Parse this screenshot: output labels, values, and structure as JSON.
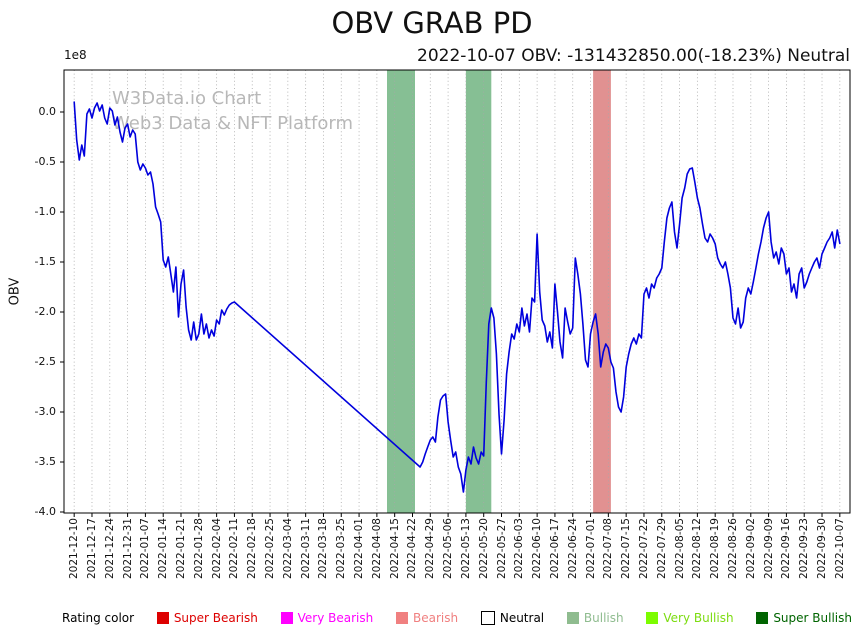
{
  "watermark": {
    "line1": "W3Data.io Chart",
    "line2": "Web3 Data & NFT Platform"
  },
  "legend": {
    "title": "Rating color",
    "items": [
      {
        "label": "Super Bearish",
        "color": "#dd0000",
        "text_color": "#dd0000"
      },
      {
        "label": "Very Bearish",
        "color": "#ff00ff",
        "text_color": "#ff00ff"
      },
      {
        "label": "Bearish",
        "color": "#f08080",
        "text_color": "#f08080"
      },
      {
        "label": "Neutral",
        "color": "#ffffff",
        "text_color": "#000000",
        "edge": "#000000"
      },
      {
        "label": "Bullish",
        "color": "#8fbc8f",
        "text_color": "#8fbc8f"
      },
      {
        "label": "Very Bullish",
        "color": "#7cfc00",
        "text_color": "#7cdc10"
      },
      {
        "label": "Super Bullish",
        "color": "#006400",
        "text_color": "#006400"
      }
    ]
  },
  "chart_data": {
    "type": "line",
    "title": "OBV GRAB PD",
    "subtitle": "2022-10-07 OBV: -131432850.00(-18.23%) Neutral",
    "ylabel": "OBV",
    "y_offset_label": "1e8",
    "y_unit_multiplier": 100000000,
    "latest": {
      "date": "2022-10-07",
      "obv": -131432850.0,
      "change_pct": -18.23,
      "rating": "Neutral"
    },
    "ylim": [
      -4.01,
      0.42
    ],
    "ytick_labels": [
      "0.0",
      "-0.5",
      "-1.0",
      "-1.5",
      "-2.0",
      "-2.5",
      "-3.0",
      "-3.5",
      "-4.0"
    ],
    "x_start_date": "2021-12-10",
    "x_tick_interval_days": 7,
    "x_range_days": [
      -4,
      305
    ],
    "x_tick_labels": [
      "2021-12-10",
      "2021-12-17",
      "2021-12-24",
      "2021-12-31",
      "2022-01-07",
      "2022-01-14",
      "2022-01-21",
      "2022-01-28",
      "2022-02-04",
      "2022-02-11",
      "2022-02-18",
      "2022-02-25",
      "2022-03-04",
      "2022-03-11",
      "2022-03-18",
      "2022-03-25",
      "2022-04-01",
      "2022-04-08",
      "2022-04-15",
      "2022-04-22",
      "2022-04-29",
      "2022-05-06",
      "2022-05-13",
      "2022-05-20",
      "2022-05-27",
      "2022-06-03",
      "2022-06-10",
      "2022-06-17",
      "2022-06-24",
      "2022-07-01",
      "2022-07-08",
      "2022-07-15",
      "2022-07-22",
      "2022-07-29",
      "2022-08-05",
      "2022-08-12",
      "2022-08-19",
      "2022-08-26",
      "2022-09-02",
      "2022-09-09",
      "2022-09-16",
      "2022-09-23",
      "2022-09-30",
      "2022-10-07"
    ],
    "grid": "vertical-dotted",
    "legend_position": "bottom",
    "line_color": "#0000dd",
    "bands": [
      {
        "start": "2022-04-12",
        "end": "2022-04-23",
        "start_day": 123,
        "end_day": 134,
        "rating": "Bullish",
        "color": "rgba(34,139,60,0.55)"
      },
      {
        "start": "2022-05-13",
        "end": "2022-05-23",
        "start_day": 154,
        "end_day": 164,
        "rating": "Bullish",
        "color": "rgba(34,139,60,0.55)"
      },
      {
        "start": "2022-07-02",
        "end": "2022-07-09",
        "start_day": 204,
        "end_day": 211,
        "rating": "Bearish",
        "color": "rgba(205,72,72,0.6)"
      }
    ],
    "series": [
      {
        "name": "OBV",
        "x_unit": "days since 2021-12-10",
        "y_unit": "1e8",
        "points": [
          [
            0,
            0.1
          ],
          [
            1,
            -0.28
          ],
          [
            2,
            -0.48
          ],
          [
            3,
            -0.33
          ],
          [
            4,
            -0.44
          ],
          [
            5,
            -0.02
          ],
          [
            6,
            0.03
          ],
          [
            7,
            -0.06
          ],
          [
            8,
            0.04
          ],
          [
            9,
            0.09
          ],
          [
            10,
            0.01
          ],
          [
            11,
            0.07
          ],
          [
            12,
            -0.06
          ],
          [
            13,
            -0.12
          ],
          [
            14,
            0.04
          ],
          [
            15,
            0.01
          ],
          [
            16,
            -0.13
          ],
          [
            17,
            -0.05
          ],
          [
            18,
            -0.2
          ],
          [
            19,
            -0.3
          ],
          [
            20,
            -0.16
          ],
          [
            21,
            -0.12
          ],
          [
            22,
            -0.25
          ],
          [
            23,
            -0.18
          ],
          [
            24,
            -0.22
          ],
          [
            25,
            -0.5
          ],
          [
            26,
            -0.58
          ],
          [
            27,
            -0.52
          ],
          [
            28,
            -0.56
          ],
          [
            29,
            -0.63
          ],
          [
            30,
            -0.6
          ],
          [
            31,
            -0.72
          ],
          [
            32,
            -0.95
          ],
          [
            33,
            -1.02
          ],
          [
            34,
            -1.1
          ],
          [
            35,
            -1.48
          ],
          [
            36,
            -1.55
          ],
          [
            37,
            -1.45
          ],
          [
            38,
            -1.62
          ],
          [
            39,
            -1.8
          ],
          [
            40,
            -1.55
          ],
          [
            41,
            -2.05
          ],
          [
            42,
            -1.72
          ],
          [
            43,
            -1.58
          ],
          [
            44,
            -1.95
          ],
          [
            45,
            -2.18
          ],
          [
            46,
            -2.28
          ],
          [
            47,
            -2.1
          ],
          [
            48,
            -2.28
          ],
          [
            49,
            -2.22
          ],
          [
            50,
            -2.02
          ],
          [
            51,
            -2.22
          ],
          [
            52,
            -2.12
          ],
          [
            53,
            -2.26
          ],
          [
            54,
            -2.18
          ],
          [
            55,
            -2.24
          ],
          [
            56,
            -2.08
          ],
          [
            57,
            -2.12
          ],
          [
            58,
            -1.98
          ],
          [
            59,
            -2.03
          ],
          [
            60,
            -1.97
          ],
          [
            61,
            -1.93
          ],
          [
            62,
            -1.91
          ],
          [
            63,
            -1.9
          ],
          [
            136,
            -3.55
          ],
          [
            137,
            -3.5
          ],
          [
            138,
            -3.42
          ],
          [
            139,
            -3.35
          ],
          [
            140,
            -3.28
          ],
          [
            141,
            -3.25
          ],
          [
            142,
            -3.3
          ],
          [
            143,
            -3.05
          ],
          [
            144,
            -2.88
          ],
          [
            145,
            -2.84
          ],
          [
            146,
            -2.82
          ],
          [
            147,
            -3.1
          ],
          [
            148,
            -3.28
          ],
          [
            149,
            -3.45
          ],
          [
            150,
            -3.4
          ],
          [
            151,
            -3.55
          ],
          [
            152,
            -3.62
          ],
          [
            153,
            -3.8
          ],
          [
            154,
            -3.58
          ],
          [
            155,
            -3.45
          ],
          [
            156,
            -3.52
          ],
          [
            157,
            -3.35
          ],
          [
            158,
            -3.46
          ],
          [
            159,
            -3.52
          ],
          [
            160,
            -3.4
          ],
          [
            161,
            -3.44
          ],
          [
            162,
            -2.7
          ],
          [
            163,
            -2.12
          ],
          [
            164,
            -1.96
          ],
          [
            165,
            -2.06
          ],
          [
            166,
            -2.42
          ],
          [
            167,
            -3.02
          ],
          [
            168,
            -3.42
          ],
          [
            169,
            -3.08
          ],
          [
            170,
            -2.62
          ],
          [
            171,
            -2.4
          ],
          [
            172,
            -2.22
          ],
          [
            173,
            -2.27
          ],
          [
            174,
            -2.12
          ],
          [
            175,
            -2.2
          ],
          [
            176,
            -1.96
          ],
          [
            177,
            -2.14
          ],
          [
            178,
            -2.02
          ],
          [
            179,
            -2.2
          ],
          [
            180,
            -1.86
          ],
          [
            181,
            -1.9
          ],
          [
            182,
            -1.22
          ],
          [
            183,
            -1.8
          ],
          [
            184,
            -2.08
          ],
          [
            185,
            -2.14
          ],
          [
            186,
            -2.3
          ],
          [
            187,
            -2.2
          ],
          [
            188,
            -2.36
          ],
          [
            189,
            -1.72
          ],
          [
            190,
            -2.0
          ],
          [
            191,
            -2.3
          ],
          [
            192,
            -2.46
          ],
          [
            193,
            -1.96
          ],
          [
            194,
            -2.1
          ],
          [
            195,
            -2.22
          ],
          [
            196,
            -2.16
          ],
          [
            197,
            -1.46
          ],
          [
            198,
            -1.62
          ],
          [
            199,
            -1.82
          ],
          [
            200,
            -2.12
          ],
          [
            201,
            -2.48
          ],
          [
            202,
            -2.55
          ],
          [
            203,
            -2.22
          ],
          [
            204,
            -2.1
          ],
          [
            205,
            -2.02
          ],
          [
            206,
            -2.22
          ],
          [
            207,
            -2.55
          ],
          [
            208,
            -2.4
          ],
          [
            209,
            -2.32
          ],
          [
            210,
            -2.36
          ],
          [
            211,
            -2.5
          ],
          [
            212,
            -2.56
          ],
          [
            213,
            -2.8
          ],
          [
            214,
            -2.95
          ],
          [
            215,
            -3.0
          ],
          [
            216,
            -2.85
          ],
          [
            217,
            -2.55
          ],
          [
            218,
            -2.42
          ],
          [
            219,
            -2.32
          ],
          [
            220,
            -2.26
          ],
          [
            221,
            -2.32
          ],
          [
            222,
            -2.22
          ],
          [
            223,
            -2.26
          ],
          [
            224,
            -1.82
          ],
          [
            225,
            -1.76
          ],
          [
            226,
            -1.86
          ],
          [
            227,
            -1.72
          ],
          [
            228,
            -1.76
          ],
          [
            229,
            -1.66
          ],
          [
            230,
            -1.62
          ],
          [
            231,
            -1.56
          ],
          [
            232,
            -1.3
          ],
          [
            233,
            -1.06
          ],
          [
            234,
            -0.96
          ],
          [
            235,
            -0.9
          ],
          [
            236,
            -1.2
          ],
          [
            237,
            -1.36
          ],
          [
            238,
            -1.12
          ],
          [
            239,
            -0.86
          ],
          [
            240,
            -0.76
          ],
          [
            241,
            -0.62
          ],
          [
            242,
            -0.57
          ],
          [
            243,
            -0.56
          ],
          [
            244,
            -0.7
          ],
          [
            245,
            -0.86
          ],
          [
            246,
            -0.96
          ],
          [
            247,
            -1.12
          ],
          [
            248,
            -1.26
          ],
          [
            249,
            -1.3
          ],
          [
            250,
            -1.22
          ],
          [
            251,
            -1.26
          ],
          [
            252,
            -1.32
          ],
          [
            253,
            -1.46
          ],
          [
            254,
            -1.52
          ],
          [
            255,
            -1.56
          ],
          [
            256,
            -1.5
          ],
          [
            257,
            -1.62
          ],
          [
            258,
            -1.76
          ],
          [
            259,
            -2.06
          ],
          [
            260,
            -2.12
          ],
          [
            261,
            -1.96
          ],
          [
            262,
            -2.16
          ],
          [
            263,
            -2.1
          ],
          [
            264,
            -1.86
          ],
          [
            265,
            -1.76
          ],
          [
            266,
            -1.82
          ],
          [
            267,
            -1.7
          ],
          [
            268,
            -1.56
          ],
          [
            269,
            -1.42
          ],
          [
            270,
            -1.3
          ],
          [
            271,
            -1.16
          ],
          [
            272,
            -1.06
          ],
          [
            273,
            -1.0
          ],
          [
            274,
            -1.3
          ],
          [
            275,
            -1.46
          ],
          [
            276,
            -1.4
          ],
          [
            277,
            -1.52
          ],
          [
            278,
            -1.36
          ],
          [
            279,
            -1.42
          ],
          [
            280,
            -1.62
          ],
          [
            281,
            -1.56
          ],
          [
            282,
            -1.8
          ],
          [
            283,
            -1.72
          ],
          [
            284,
            -1.86
          ],
          [
            285,
            -1.62
          ],
          [
            286,
            -1.56
          ],
          [
            287,
            -1.76
          ],
          [
            288,
            -1.7
          ],
          [
            289,
            -1.62
          ],
          [
            290,
            -1.56
          ],
          [
            291,
            -1.5
          ],
          [
            292,
            -1.46
          ],
          [
            293,
            -1.56
          ],
          [
            294,
            -1.42
          ],
          [
            295,
            -1.36
          ],
          [
            296,
            -1.3
          ],
          [
            297,
            -1.26
          ],
          [
            298,
            -1.2
          ],
          [
            299,
            -1.36
          ],
          [
            300,
            -1.18
          ],
          [
            301,
            -1.3143285
          ]
        ]
      }
    ]
  }
}
